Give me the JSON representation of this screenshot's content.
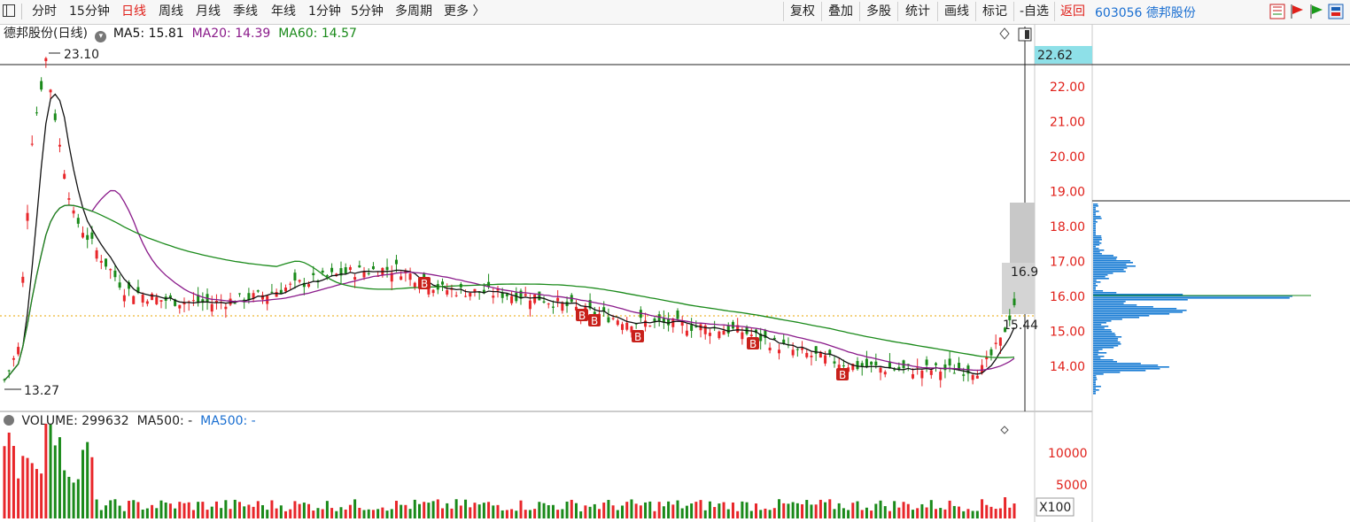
{
  "toolbar": {
    "periods": [
      "分时",
      "15分钟",
      "日线",
      "周线",
      "月线",
      "季线",
      "年线",
      "1分钟",
      "5分钟",
      "多周期",
      "更多 〉"
    ],
    "active_period": "日线",
    "tools": [
      "复权",
      "叠加",
      "多股",
      "统计",
      "画线",
      "标记",
      "-自选",
      "返回"
    ]
  },
  "stock": {
    "code": "603056",
    "name": "德邦股份"
  },
  "main_panel": {
    "title": "德邦股份(日线)",
    "ma5": "MA5: 15.81",
    "ma20": "MA20: 14.39",
    "ma60": "MA60: 14.57",
    "high_label": "23.10",
    "low_label": "13.27",
    "cursor_price": "22.62",
    "mark_price_169": "16.9",
    "mark_price_1544": "15.44",
    "price_ticks": [
      "22.00",
      "21.00",
      "20.00",
      "19.00",
      "18.00",
      "17.00",
      "16.00",
      "15.00",
      "14.00"
    ]
  },
  "volume_panel": {
    "title": "VOLUME: 299632",
    "ma500_a": "MA500: -",
    "ma500_b": "MA500: -",
    "ticks": [
      "10000",
      "5000"
    ],
    "unit": "X100"
  },
  "signals": {
    "marker": "B"
  },
  "colors": {
    "up": "#e8262a",
    "down": "#1a8a1a",
    "ma5": "#111111",
    "ma20": "#8a1a8a",
    "ma60": "#1a8a1a",
    "chip": "#1a7dd4"
  }
}
